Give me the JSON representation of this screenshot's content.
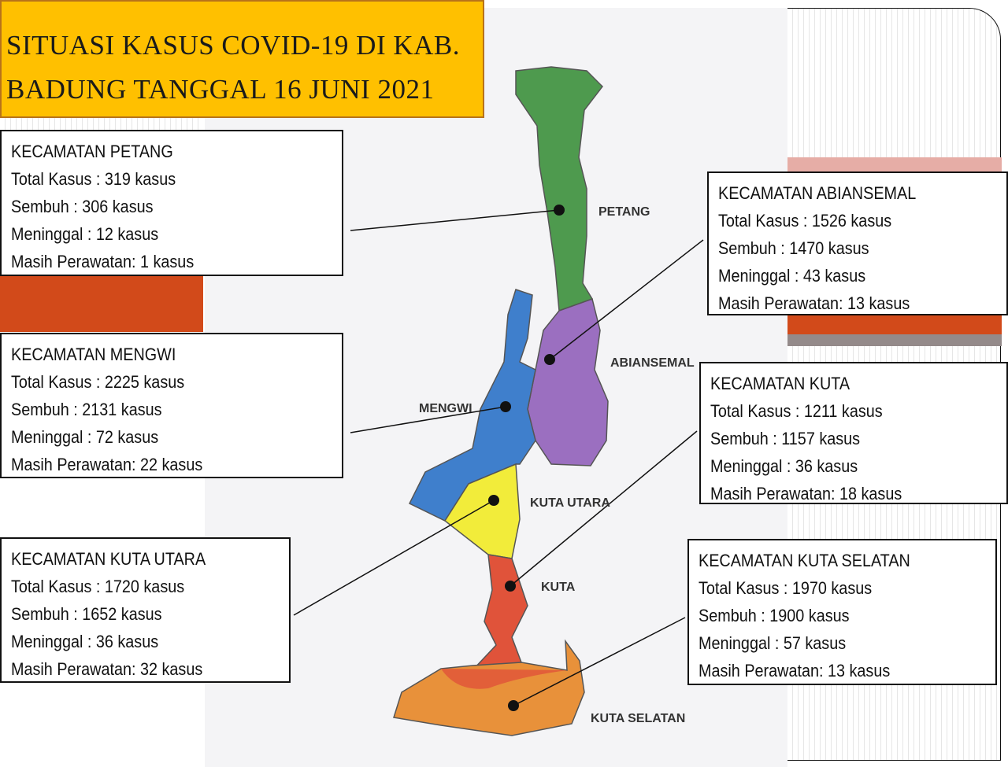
{
  "title": {
    "line1": "SITUASI KASUS COVID-19 DI KAB.",
    "line2": "BADUNG TANGGAL 16 JUNI 2021"
  },
  "colors": {
    "title_bg": "#FFC000",
    "accent_orange": "#D24A1A",
    "accent_pink": "#E6ADA6",
    "accent_gray": "#948A8A",
    "petang": "#4E9A4E",
    "abiansemal": "#9B6FC0",
    "mengwi": "#3F7FCC",
    "kuta_utara": "#F2EC3A",
    "kuta": "#E0533A",
    "kuta_selatan": "#E8913A"
  },
  "map_labels": {
    "petang": "PETANG",
    "abiansemal": "ABIANSEMAL",
    "mengwi": "MENGWI",
    "kuta_utara": "KUTA UTARA",
    "kuta": "KUTA",
    "kuta_selatan": "KUTA SELATAN"
  },
  "districts": {
    "petang": {
      "name": "KECAMATAN PETANG",
      "total": "Total Kasus : 319 kasus",
      "sembuh": "Sembuh : 306 kasus",
      "meninggal": "Meninggal : 12 kasus",
      "perawatan": "Masih Perawatan: 1 kasus"
    },
    "mengwi": {
      "name": "KECAMATAN MENGWI",
      "total": "Total Kasus : 2225 kasus",
      "sembuh": "Sembuh : 2131 kasus",
      "meninggal": "Meninggal : 72 kasus",
      "perawatan": "Masih Perawatan: 22 kasus"
    },
    "kuta_utara": {
      "name": "KECAMATAN KUTA UTARA",
      "total": "Total Kasus : 1720 kasus",
      "sembuh": "Sembuh : 1652 kasus",
      "meninggal": "Meninggal : 36 kasus",
      "perawatan": "Masih Perawatan: 32 kasus"
    },
    "abiansemal": {
      "name": "KECAMATAN ABIANSEMAL",
      "total": "Total Kasus : 1526 kasus",
      "sembuh": "Sembuh : 1470 kasus",
      "meninggal": "Meninggal : 43 kasus",
      "perawatan": "Masih Perawatan: 13 kasus"
    },
    "kuta": {
      "name": "KECAMATAN KUTA",
      "total": "Total Kasus : 1211 kasus",
      "sembuh": "Sembuh : 1157 kasus",
      "meninggal": "Meninggal : 36 kasus",
      "perawatan": "Masih Perawatan: 18 kasus"
    },
    "kuta_selatan": {
      "name": "KECAMATAN KUTA SELATAN",
      "total": "Total Kasus : 1970 kasus",
      "sembuh": "Sembuh : 1900 kasus",
      "meninggal": "Meninggal : 57 kasus",
      "perawatan": "Masih Perawatan: 13 kasus"
    }
  }
}
